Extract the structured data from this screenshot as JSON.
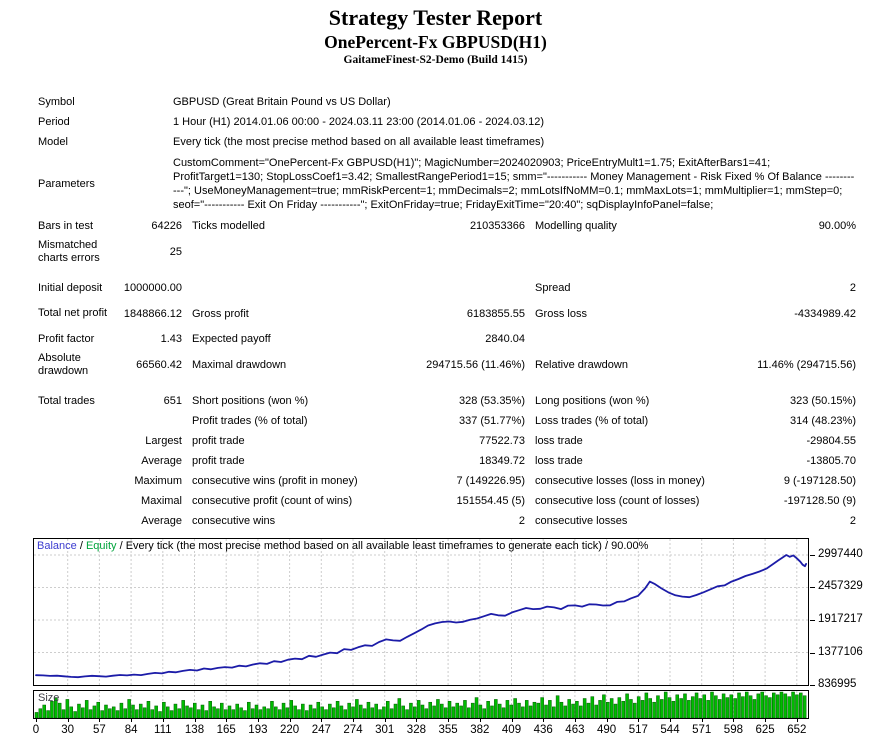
{
  "header": {
    "title": "Strategy Tester Report",
    "subtitle": "OnePercent-Fx GBPUSD(H1)",
    "build": "GaitameFinest-S2-Demo (Build 1415)"
  },
  "report": {
    "rows": [
      {
        "type": "simple",
        "label": "Symbol",
        "value": "GBPUSD (Great Britain Pound vs US Dollar)"
      },
      {
        "type": "simple",
        "label": "Period",
        "value": "1 Hour (H1) 2014.01.06 00:00 - 2024.03.11 23:00 (2014.01.06 - 2024.03.12)"
      },
      {
        "type": "simple",
        "label": "Model",
        "value": "Every tick (the most precise method based on all available least timeframes)"
      },
      {
        "type": "params",
        "label": "Parameters",
        "value": "CustomComment=\"OnePercent-Fx GBPUSD(H1)\"; MagicNumber=2024020903; PriceEntryMult1=1.75; ExitAfterBars1=41; ProfitTarget1=130; StopLossCoef1=3.42; SmallestRangePeriod1=15; smm=\"----------- Money Management - Risk Fixed % Of Balance -----------\"; UseMoneyManagement=true; mmRiskPercent=1; mmDecimals=2; mmLotsIfNoMM=0.1; mmMaxLots=1; mmMultiplier=1; mmStep=0; seof=\"----------- Exit On Friday -----------\"; ExitOnFriday=true; FridayExitTime=\"20:40\"; sqDisplayInfoPanel=false;"
      },
      {
        "type": "stat",
        "cells": [
          "Bars in test",
          "64226",
          "Ticks modelled",
          "210353366",
          "Modelling quality",
          "90.00%"
        ]
      },
      {
        "type": "stat",
        "tall": true,
        "cells": [
          "Mismatched charts errors",
          "25",
          "",
          "",
          "",
          ""
        ]
      },
      {
        "type": "gap"
      },
      {
        "type": "stat",
        "cells": [
          "Initial deposit",
          "1000000.00",
          "",
          "",
          "Spread",
          "2"
        ]
      },
      {
        "type": "stat",
        "tall": true,
        "cells": [
          "Total net profit",
          "1848866.12",
          "Gross profit",
          "6183855.55",
          "Gross loss",
          "-4334989.42"
        ]
      },
      {
        "type": "stat",
        "cells": [
          "Profit factor",
          "1.43",
          "Expected payoff",
          "2840.04",
          "",
          ""
        ]
      },
      {
        "type": "stat",
        "tall": true,
        "cells": [
          "Absolute drawdown",
          "66560.42",
          "Maximal drawdown",
          "294715.56 (11.46%)",
          "Relative drawdown",
          "11.46% (294715.56)"
        ]
      },
      {
        "type": "gap"
      },
      {
        "type": "stat",
        "cells": [
          "Total trades",
          "651",
          "Short positions (won %)",
          "328 (53.35%)",
          "Long positions (won %)",
          "323 (50.15%)"
        ]
      },
      {
        "type": "stat",
        "cells": [
          "",
          "",
          "Profit trades (% of total)",
          "337 (51.77%)",
          "Loss trades (% of total)",
          "314 (48.23%)"
        ]
      },
      {
        "type": "stat",
        "cells": [
          "",
          "Largest",
          "profit trade",
          "77522.73",
          "loss trade",
          "-29804.55"
        ]
      },
      {
        "type": "stat",
        "cells": [
          "",
          "Average",
          "profit trade",
          "18349.72",
          "loss trade",
          "-13805.70"
        ]
      },
      {
        "type": "stat",
        "cells": [
          "",
          "Maximum",
          "consecutive wins (profit in money)",
          "7 (149226.95)",
          "consecutive losses (loss in money)",
          "9 (-197128.50)"
        ]
      },
      {
        "type": "stat",
        "cells": [
          "",
          "Maximal",
          "consecutive profit (count of wins)",
          "151554.45 (5)",
          "consecutive loss (count of losses)",
          "-197128.50 (9)"
        ]
      },
      {
        "type": "stat",
        "cells": [
          "",
          "Average",
          "consecutive wins",
          "2",
          "consecutive losses",
          "2"
        ]
      }
    ]
  },
  "chart_data": {
    "type": "line",
    "legend": {
      "balance_label": "Balance",
      "equity_label": "Equity",
      "separator": " / ",
      "description": "Every tick (the most precise method based on all available least timeframes to generate each tick) / 90.00%",
      "balance_color": "#3b3bd0",
      "equity_color": "#00a43c"
    },
    "line_color": "#1c1ca8",
    "grid_color": "#cdcdcd",
    "y_ticks": [
      2997440,
      2457329,
      1917217,
      1377106,
      836995
    ],
    "x_ticks": [
      0,
      30,
      57,
      84,
      111,
      138,
      165,
      193,
      220,
      247,
      274,
      301,
      328,
      355,
      382,
      409,
      436,
      463,
      490,
      517,
      544,
      571,
      598,
      625,
      652
    ],
    "y_range": [
      836995,
      3280000
    ],
    "x_range": [
      0,
      660
    ],
    "series": [
      {
        "name": "Balance",
        "points": [
          [
            0,
            1000000
          ],
          [
            6,
            996000
          ],
          [
            12,
            988000
          ],
          [
            18,
            992000
          ],
          [
            24,
            982000
          ],
          [
            30,
            972000
          ],
          [
            36,
            966000
          ],
          [
            42,
            980000
          ],
          [
            48,
            990000
          ],
          [
            54,
            983000
          ],
          [
            60,
            976000
          ],
          [
            66,
            992000
          ],
          [
            72,
            1004000
          ],
          [
            78,
            997000
          ],
          [
            84,
            1010000
          ],
          [
            90,
            1002000
          ],
          [
            96,
            1022000
          ],
          [
            102,
            1038000
          ],
          [
            108,
            1030000
          ],
          [
            114,
            1056000
          ],
          [
            120,
            1048000
          ],
          [
            126,
            1072000
          ],
          [
            132,
            1088000
          ],
          [
            138,
            1078000
          ],
          [
            144,
            1112000
          ],
          [
            150,
            1098000
          ],
          [
            156,
            1122000
          ],
          [
            162,
            1134000
          ],
          [
            168,
            1126000
          ],
          [
            174,
            1158000
          ],
          [
            180,
            1146000
          ],
          [
            186,
            1178000
          ],
          [
            192,
            1198000
          ],
          [
            198,
            1188000
          ],
          [
            204,
            1232000
          ],
          [
            210,
            1220000
          ],
          [
            216,
            1258000
          ],
          [
            222,
            1276000
          ],
          [
            228,
            1266000
          ],
          [
            234,
            1322000
          ],
          [
            240,
            1306000
          ],
          [
            246,
            1342000
          ],
          [
            252,
            1376000
          ],
          [
            258,
            1366000
          ],
          [
            264,
            1434000
          ],
          [
            270,
            1420000
          ],
          [
            276,
            1464000
          ],
          [
            282,
            1496000
          ],
          [
            288,
            1486000
          ],
          [
            294,
            1552000
          ],
          [
            300,
            1594000
          ],
          [
            306,
            1578000
          ],
          [
            312,
            1572000
          ],
          [
            318,
            1636000
          ],
          [
            324,
            1696000
          ],
          [
            330,
            1758000
          ],
          [
            336,
            1826000
          ],
          [
            342,
            1860000
          ],
          [
            348,
            1884000
          ],
          [
            354,
            1892000
          ],
          [
            360,
            1876000
          ],
          [
            366,
            1888000
          ],
          [
            372,
            1920000
          ],
          [
            378,
            1942000
          ],
          [
            384,
            1980000
          ],
          [
            390,
            2018000
          ],
          [
            396,
            1996000
          ],
          [
            402,
            1988000
          ],
          [
            408,
            2044000
          ],
          [
            414,
            2080000
          ],
          [
            420,
            2116000
          ],
          [
            426,
            2098000
          ],
          [
            432,
            2104000
          ],
          [
            438,
            2140000
          ],
          [
            444,
            2126000
          ],
          [
            450,
            2098000
          ],
          [
            456,
            2156000
          ],
          [
            462,
            2160000
          ],
          [
            468,
            2140000
          ],
          [
            474,
            2178000
          ],
          [
            480,
            2174000
          ],
          [
            486,
            2158000
          ],
          [
            492,
            2162000
          ],
          [
            498,
            2218000
          ],
          [
            504,
            2226000
          ],
          [
            510,
            2278000
          ],
          [
            516,
            2320000
          ],
          [
            522,
            2442000
          ],
          [
            526,
            2556000
          ],
          [
            530,
            2518000
          ],
          [
            536,
            2442000
          ],
          [
            542,
            2376000
          ],
          [
            548,
            2328000
          ],
          [
            554,
            2306000
          ],
          [
            560,
            2296000
          ],
          [
            566,
            2332000
          ],
          [
            572,
            2378000
          ],
          [
            578,
            2428000
          ],
          [
            584,
            2478000
          ],
          [
            590,
            2492000
          ],
          [
            596,
            2556000
          ],
          [
            602,
            2598000
          ],
          [
            608,
            2648000
          ],
          [
            614,
            2684000
          ],
          [
            620,
            2724000
          ],
          [
            626,
            2772000
          ],
          [
            632,
            2852000
          ],
          [
            636,
            2906000
          ],
          [
            640,
            2958000
          ],
          [
            643,
            2997440
          ],
          [
            646,
            2968000
          ],
          [
            649,
            2990000
          ],
          [
            652,
            2942000
          ],
          [
            655,
            2886000
          ],
          [
            657,
            2836000
          ],
          [
            659,
            2812000
          ],
          [
            660,
            2848866
          ]
        ]
      }
    ],
    "size_panel": {
      "label": "Size",
      "bar_color": "#00bb00",
      "bar_border": "#005a00",
      "bars": [
        6,
        10,
        14,
        8,
        18,
        22,
        16,
        9,
        20,
        12,
        7,
        15,
        11,
        19,
        9,
        13,
        17,
        8,
        14,
        10,
        12,
        8,
        16,
        10,
        20,
        14,
        9,
        15,
        11,
        18,
        9,
        13,
        7,
        17,
        12,
        8,
        15,
        10,
        19,
        13,
        11,
        16,
        9,
        14,
        8,
        18,
        12,
        10,
        16,
        9,
        13,
        9,
        15,
        11,
        8,
        17,
        10,
        14,
        9,
        12,
        10,
        18,
        12,
        9,
        16,
        11,
        19,
        13,
        9,
        15,
        8,
        14,
        10,
        17,
        12,
        9,
        15,
        11,
        18,
        13,
        9,
        16,
        12,
        20,
        14,
        10,
        17,
        11,
        15,
        9,
        12,
        18,
        10,
        15,
        21,
        13,
        9,
        16,
        12,
        19,
        14,
        10,
        17,
        13,
        20,
        15,
        11,
        18,
        12,
        16,
        13,
        19,
        11,
        16,
        22,
        14,
        10,
        18,
        13,
        20,
        15,
        11,
        19,
        14,
        21,
        16,
        12,
        19,
        13,
        17,
        16,
        22,
        14,
        19,
        12,
        24,
        17,
        13,
        20,
        15,
        18,
        13,
        21,
        16,
        23,
        14,
        19,
        25,
        17,
        21,
        15,
        22,
        18,
        26,
        20,
        16,
        23,
        19,
        27,
        21,
        17,
        24,
        20,
        28,
        22,
        18,
        25,
        21,
        26,
        19,
        23,
        27,
        21,
        25,
        19,
        28,
        24,
        20,
        26,
        22,
        25,
        21,
        27,
        23,
        28,
        24,
        20,
        26,
        28,
        24,
        22,
        27,
        25,
        28,
        26,
        23,
        28,
        25,
        27,
        24
      ]
    }
  }
}
